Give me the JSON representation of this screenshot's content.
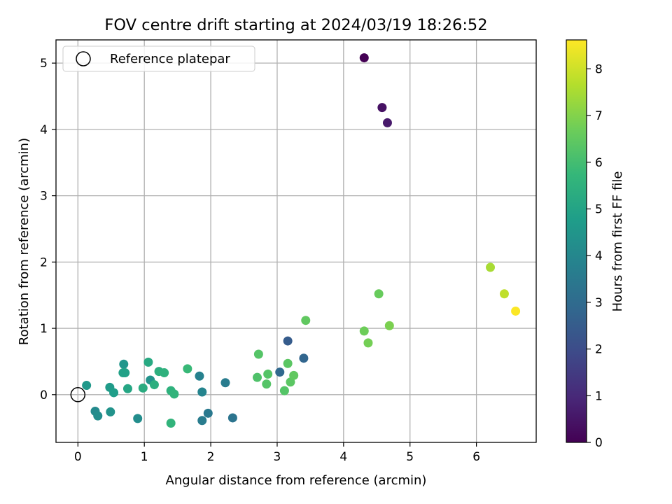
{
  "chart_data": {
    "type": "scatter",
    "title": "FOV centre drift starting at 2024/03/19 18:26:52",
    "xlabel": "Angular distance from reference (arcmin)",
    "ylabel": "Rotation from reference (arcmin)",
    "xlim": [
      -0.33,
      6.9
    ],
    "ylim": [
      -0.72,
      5.35
    ],
    "xticks": [
      0,
      1,
      2,
      3,
      4,
      5,
      6
    ],
    "yticks": [
      0,
      1,
      2,
      3,
      4,
      5
    ],
    "grid": true,
    "colormap": "viridis",
    "colorbar": {
      "label": "Hours from first FF file",
      "range": [
        0,
        8.62
      ],
      "ticks": [
        0,
        1,
        2,
        3,
        4,
        5,
        6,
        7,
        8
      ]
    },
    "legend": {
      "position": "top-left",
      "entries": [
        {
          "label": "Reference platepar",
          "marker": "open-circle"
        }
      ]
    },
    "reference_point": {
      "x": 0,
      "y": 0
    },
    "series": [
      {
        "points": [
          {
            "x": 4.31,
            "y": 5.08,
            "hours": 0.0
          },
          {
            "x": 4.58,
            "y": 4.33,
            "hours": 0.4
          },
          {
            "x": 4.66,
            "y": 4.1,
            "hours": 0.6
          },
          {
            "x": 3.16,
            "y": 0.81,
            "hours": 2.5
          },
          {
            "x": 3.4,
            "y": 0.55,
            "hours": 2.8
          },
          {
            "x": 3.04,
            "y": 0.34,
            "hours": 2.9
          },
          {
            "x": 2.33,
            "y": -0.35,
            "hours": 3.3
          },
          {
            "x": 1.96,
            "y": -0.28,
            "hours": 3.5
          },
          {
            "x": 1.87,
            "y": -0.39,
            "hours": 3.6
          },
          {
            "x": 2.22,
            "y": 0.18,
            "hours": 3.6
          },
          {
            "x": 1.83,
            "y": 0.28,
            "hours": 3.8
          },
          {
            "x": 1.87,
            "y": 0.04,
            "hours": 3.9
          },
          {
            "x": 0.26,
            "y": -0.25,
            "hours": 4.1
          },
          {
            "x": 0.3,
            "y": -0.32,
            "hours": 4.2
          },
          {
            "x": 0.9,
            "y": -0.36,
            "hours": 4.2
          },
          {
            "x": 0.49,
            "y": -0.26,
            "hours": 4.4
          },
          {
            "x": 1.09,
            "y": 0.22,
            "hours": 4.4
          },
          {
            "x": 0.69,
            "y": 0.46,
            "hours": 4.5
          },
          {
            "x": 0.13,
            "y": 0.14,
            "hours": 4.6
          },
          {
            "x": 0.48,
            "y": 0.11,
            "hours": 4.7
          },
          {
            "x": 0.54,
            "y": 0.03,
            "hours": 4.8
          },
          {
            "x": 0.68,
            "y": 0.33,
            "hours": 4.9
          },
          {
            "x": 0.71,
            "y": 0.33,
            "hours": 4.9
          },
          {
            "x": 0.75,
            "y": 0.09,
            "hours": 5.1
          },
          {
            "x": 1.06,
            "y": 0.49,
            "hours": 5.2
          },
          {
            "x": 0.98,
            "y": 0.1,
            "hours": 5.3
          },
          {
            "x": 1.15,
            "y": 0.15,
            "hours": 5.4
          },
          {
            "x": 1.22,
            "y": 0.35,
            "hours": 5.4
          },
          {
            "x": 1.3,
            "y": 0.33,
            "hours": 5.5
          },
          {
            "x": 1.4,
            "y": 0.06,
            "hours": 5.5
          },
          {
            "x": 1.45,
            "y": 0.01,
            "hours": 5.6
          },
          {
            "x": 1.4,
            "y": -0.43,
            "hours": 5.6
          },
          {
            "x": 1.65,
            "y": 0.39,
            "hours": 5.8
          },
          {
            "x": 2.7,
            "y": 0.26,
            "hours": 6.2
          },
          {
            "x": 2.72,
            "y": 0.61,
            "hours": 6.3
          },
          {
            "x": 2.84,
            "y": 0.16,
            "hours": 6.3
          },
          {
            "x": 2.86,
            "y": 0.31,
            "hours": 6.3
          },
          {
            "x": 3.11,
            "y": 0.06,
            "hours": 6.3
          },
          {
            "x": 3.16,
            "y": 0.47,
            "hours": 6.4
          },
          {
            "x": 3.2,
            "y": 0.19,
            "hours": 6.4
          },
          {
            "x": 3.25,
            "y": 0.29,
            "hours": 6.5
          },
          {
            "x": 3.43,
            "y": 1.12,
            "hours": 6.5
          },
          {
            "x": 4.53,
            "y": 1.52,
            "hours": 6.6
          },
          {
            "x": 4.31,
            "y": 0.96,
            "hours": 6.7
          },
          {
            "x": 4.37,
            "y": 0.78,
            "hours": 6.8
          },
          {
            "x": 4.69,
            "y": 1.04,
            "hours": 6.9
          },
          {
            "x": 6.21,
            "y": 1.92,
            "hours": 7.5
          },
          {
            "x": 6.42,
            "y": 1.52,
            "hours": 7.8
          },
          {
            "x": 6.59,
            "y": 1.26,
            "hours": 8.6
          }
        ]
      }
    ]
  }
}
